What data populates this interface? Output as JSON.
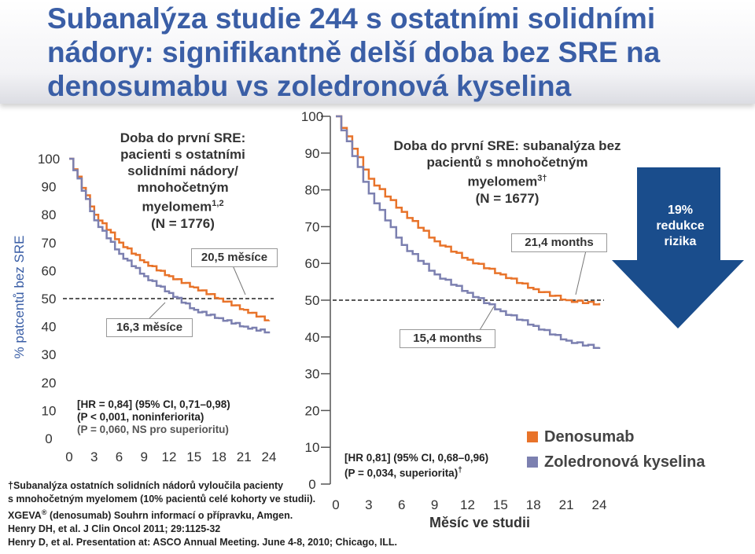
{
  "title": "Subanalýza studie 244 s ostatními solidními nádory: signifikantně delší doba bez SRE na denosumabu vs zoledronová kyselina",
  "y_axis_label": "% patcentů bez SRE",
  "x_axis_label": "Měsíc ve studii",
  "left_panel": {
    "heading": [
      "Doba do první SRE:",
      "pacienti s ostatními",
      "solidními nádory/",
      "mnohočetným"
    ],
    "heading_line5": "myelomem",
    "heading_sup": "1,2",
    "n_text": "(N = 1776)",
    "label_deno": "20,5 měsíce",
    "label_zol": "16,3 měsíce",
    "hr_line1": "[HR = 0,84] (95% CI, 0,71–0,98)",
    "hr_line2": "(P < 0,001, noninferiorita)",
    "hr_line3": "(P = 0,060, NS pro superioritu)"
  },
  "right_panel": {
    "heading_line1": "Doba do první SRE: subanalýza bez",
    "heading_line2": "pacientů s mnohočetným",
    "heading_line3": "myelomem",
    "heading_sup": "3†",
    "n_text": "(N = 1677)",
    "label_deno": "21,4 months",
    "label_zol": "15,4 months",
    "hr_line1": "[HR 0,81] (95% CI, 0,68–0,96)",
    "hr_line2": "(P = 0,034, superiorita)",
    "hr_sup": "†"
  },
  "legend": {
    "items": [
      {
        "label": "Denosumab",
        "color": "#e8732a"
      },
      {
        "label": "Zoledronová kyselina",
        "color": "#7c80b0"
      }
    ]
  },
  "risk_arrow": {
    "line1": "19%",
    "line2": "redukce",
    "line3": "rizika",
    "color": "#1a4d8c"
  },
  "footnotes": {
    "line1": "†Subanalýza ostatních solidních nádorů vyloučila pacienty",
    "line2": "s mnohočetným myelomem (10% pacientů celé kohorty ve studii).",
    "line3_a": "XGEVA",
    "line3_sym": "®",
    "line3_b": " (denosumab) Souhrn informací o přípravku, Amgen.",
    "line4": "Henry DH, et al. J Clin Oncol 2011; 29:1125-32",
    "line5": "Henry D, et al. Presentation at: ASCO Annual Meeting. June 4-8, 2010; Chicago, ILL."
  },
  "chart_data": [
    {
      "type": "line",
      "subtype": "kaplan-meier step",
      "x": [
        0,
        3,
        6,
        9,
        12,
        15,
        18,
        21,
        24
      ],
      "x_ticks": [
        "0",
        "3",
        "6",
        "9",
        "12",
        "15",
        "18",
        "21",
        "24"
      ],
      "y_ticks": [
        "0",
        "10",
        "20",
        "30",
        "40",
        "50",
        "60",
        "70",
        "80",
        "90",
        "100"
      ],
      "xlim": [
        0,
        24
      ],
      "ylim": [
        0,
        100
      ],
      "reference_line_y": 50,
      "series": [
        {
          "name": "Denosumab",
          "color": "#e8732a",
          "values": [
            100,
            80,
            70,
            63,
            58,
            54,
            50,
            46,
            42
          ]
        },
        {
          "name": "Zoledronová kyselina",
          "color": "#7c80b0",
          "values": [
            100,
            78,
            66,
            58,
            52,
            46,
            43,
            40,
            38
          ]
        }
      ]
    },
    {
      "type": "line",
      "subtype": "kaplan-meier step",
      "x": [
        0,
        3,
        6,
        9,
        12,
        15,
        18,
        21,
        24
      ],
      "x_ticks": [
        "0",
        "3",
        "6",
        "9",
        "12",
        "15",
        "18",
        "21",
        "24"
      ],
      "y_ticks": [
        "0",
        "10",
        "20",
        "30",
        "40",
        "50",
        "60",
        "70",
        "80",
        "90",
        "100"
      ],
      "xlim": [
        0,
        24
      ],
      "ylim": [
        0,
        100
      ],
      "reference_line_y": 50,
      "series": [
        {
          "name": "Denosumab",
          "color": "#e8732a",
          "values": [
            100,
            83,
            74,
            66,
            61,
            57,
            53,
            50,
            49
          ]
        },
        {
          "name": "Zoledronová kyselina",
          "color": "#7c80b0",
          "values": [
            100,
            79,
            65,
            57,
            52,
            47,
            43,
            39,
            37
          ]
        }
      ]
    }
  ]
}
